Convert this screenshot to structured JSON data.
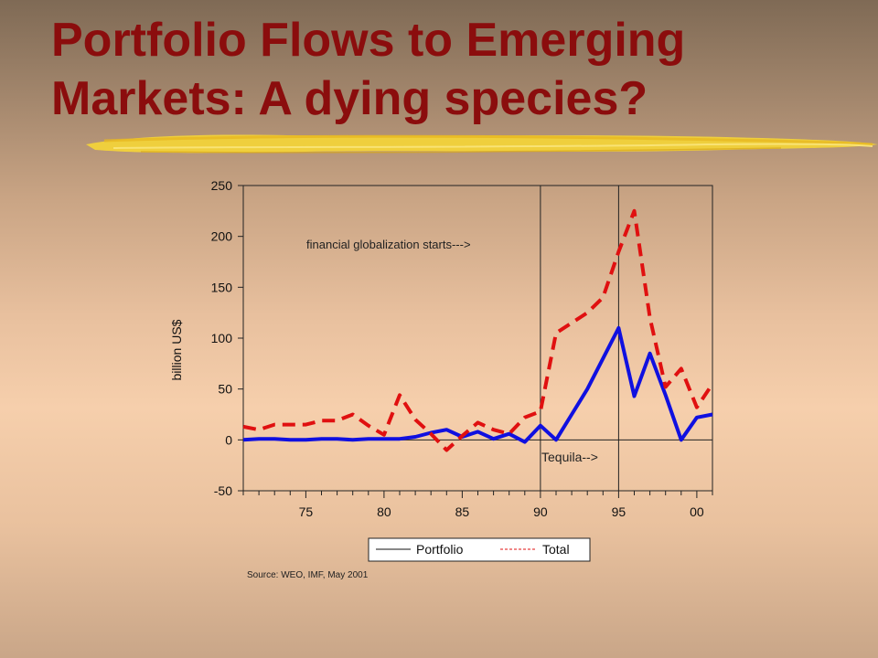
{
  "slide": {
    "title_line1": "Portfolio Flows to Emerging",
    "title_line2": "Markets: A dying species?",
    "title_color": "#8b0d0d",
    "brush_color": "#f2d23a"
  },
  "chart_data": {
    "type": "line",
    "ylabel": "billion US$",
    "ylim": [
      -50,
      250
    ],
    "yticks": [
      -50,
      0,
      50,
      100,
      150,
      200,
      250
    ],
    "xlim": [
      1971,
      2001
    ],
    "xticks": [
      1975,
      1980,
      1985,
      1990,
      1995,
      2000
    ],
    "xtick_labels": [
      "75",
      "80",
      "85",
      "90",
      "95",
      "00"
    ],
    "grid": false,
    "legend_placement": "bottom",
    "x": [
      1971,
      1972,
      1973,
      1974,
      1975,
      1976,
      1977,
      1978,
      1979,
      1980,
      1981,
      1982,
      1983,
      1984,
      1985,
      1986,
      1987,
      1988,
      1989,
      1990,
      1991,
      1992,
      1993,
      1994,
      1995,
      1996,
      1997,
      1998,
      1999,
      2000,
      2001
    ],
    "series": [
      {
        "name": "Portfolio",
        "color": "#1010e0",
        "style": "solid",
        "values": [
          0,
          1,
          1,
          0,
          0,
          1,
          1,
          0,
          1,
          1,
          1,
          3,
          7,
          10,
          3,
          8,
          1,
          6,
          -2,
          14,
          0,
          25,
          50,
          80,
          110,
          43,
          85,
          44,
          0,
          22,
          25
        ]
      },
      {
        "name": "Total",
        "color": "#e01010",
        "style": "dashed",
        "values": [
          13,
          10,
          15,
          15,
          15,
          19,
          19,
          25,
          14,
          5,
          44,
          20,
          6,
          -10,
          4,
          17,
          10,
          6,
          22,
          28,
          105,
          115,
          125,
          140,
          185,
          225,
          120,
          52,
          70,
          32,
          55
        ]
      }
    ],
    "annotations": [
      {
        "text": "financial globalization  starts--->",
        "x": 1990
      },
      {
        "text": "Tequila-->",
        "x": 1995
      }
    ],
    "vlines": [
      1990,
      1995
    ],
    "hline": 0,
    "source": "Source: WEO, IMF, May 2001"
  }
}
